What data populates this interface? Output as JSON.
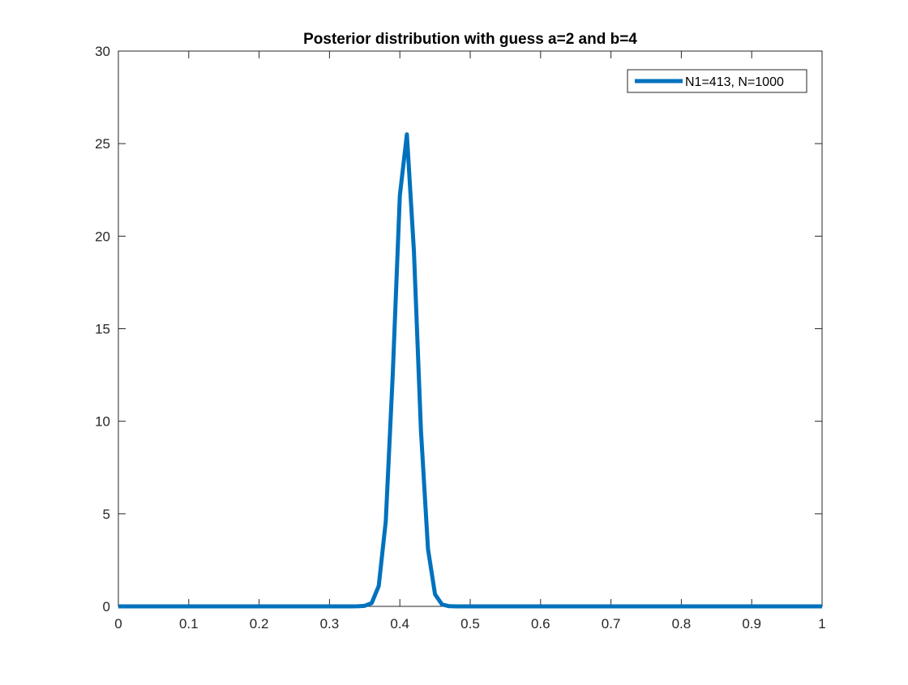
{
  "chart_data": {
    "type": "line",
    "title": "Posterior distribution with guess a=2 and b=4",
    "xlabel": "",
    "ylabel": "",
    "xlim": [
      0,
      1
    ],
    "ylim": [
      0,
      30
    ],
    "xticks": [
      0,
      0.1,
      0.2,
      0.3,
      0.4,
      0.5,
      0.6,
      0.7,
      0.8,
      0.9,
      1
    ],
    "xtick_labels": [
      "0",
      "0.1",
      "0.2",
      "0.3",
      "0.4",
      "0.5",
      "0.6",
      "0.7",
      "0.8",
      "0.9",
      "1"
    ],
    "yticks": [
      0,
      5,
      10,
      15,
      20,
      25,
      30
    ],
    "ytick_labels": [
      "0",
      "5",
      "10",
      "15",
      "20",
      "25",
      "30"
    ],
    "grid": false,
    "box": true,
    "legend_position": "top-right",
    "series": [
      {
        "name": "N1=413, N=1000",
        "color": "#0072BD",
        "x": [
          0,
          0.01,
          0.02,
          0.03,
          0.04,
          0.05,
          0.06,
          0.07,
          0.08,
          0.09,
          0.1,
          0.11,
          0.12,
          0.13,
          0.14,
          0.15,
          0.16,
          0.17,
          0.18,
          0.19,
          0.2,
          0.21,
          0.22,
          0.23,
          0.24,
          0.25,
          0.26,
          0.27,
          0.28,
          0.29,
          0.3,
          0.31,
          0.32,
          0.33,
          0.34,
          0.35,
          0.36,
          0.37,
          0.38,
          0.39,
          0.4,
          0.41,
          0.42,
          0.43,
          0.44,
          0.45,
          0.46,
          0.47,
          0.48,
          0.49,
          0.5,
          0.51,
          0.52,
          0.53,
          0.54,
          0.55,
          0.56,
          0.57,
          0.58,
          0.59,
          0.6,
          0.61,
          0.62,
          0.63,
          0.64,
          0.65,
          0.66,
          0.67,
          0.68,
          0.69,
          0.7,
          0.71,
          0.72,
          0.73,
          0.74,
          0.75,
          0.76,
          0.77,
          0.78,
          0.79,
          0.8,
          0.81,
          0.82,
          0.83,
          0.84,
          0.85,
          0.86,
          0.87,
          0.88,
          0.89,
          0.9,
          0.91,
          0.92,
          0.93,
          0.94,
          0.95,
          0.96,
          0.97,
          0.98,
          0.99,
          1
        ],
        "y": [
          0,
          0,
          0,
          0,
          0,
          0,
          0,
          0,
          0,
          0,
          0,
          0,
          0,
          0,
          0,
          0,
          0,
          0,
          0,
          0,
          0,
          0,
          0,
          0,
          0,
          0,
          0,
          0,
          0,
          0,
          0,
          0,
          0,
          0,
          0.004,
          0.03,
          0.18,
          1.1,
          4.6,
          12.6,
          22.2,
          25.5,
          19.2,
          9.5,
          3.1,
          0.65,
          0.1,
          0.01,
          0,
          0,
          0,
          0,
          0,
          0,
          0,
          0,
          0,
          0,
          0,
          0,
          0,
          0,
          0,
          0,
          0,
          0,
          0,
          0,
          0,
          0,
          0,
          0,
          0,
          0,
          0,
          0,
          0,
          0,
          0,
          0,
          0,
          0,
          0,
          0,
          0,
          0,
          0,
          0,
          0,
          0,
          0,
          0,
          0,
          0,
          0,
          0,
          0,
          0,
          0,
          0,
          0
        ]
      }
    ]
  }
}
